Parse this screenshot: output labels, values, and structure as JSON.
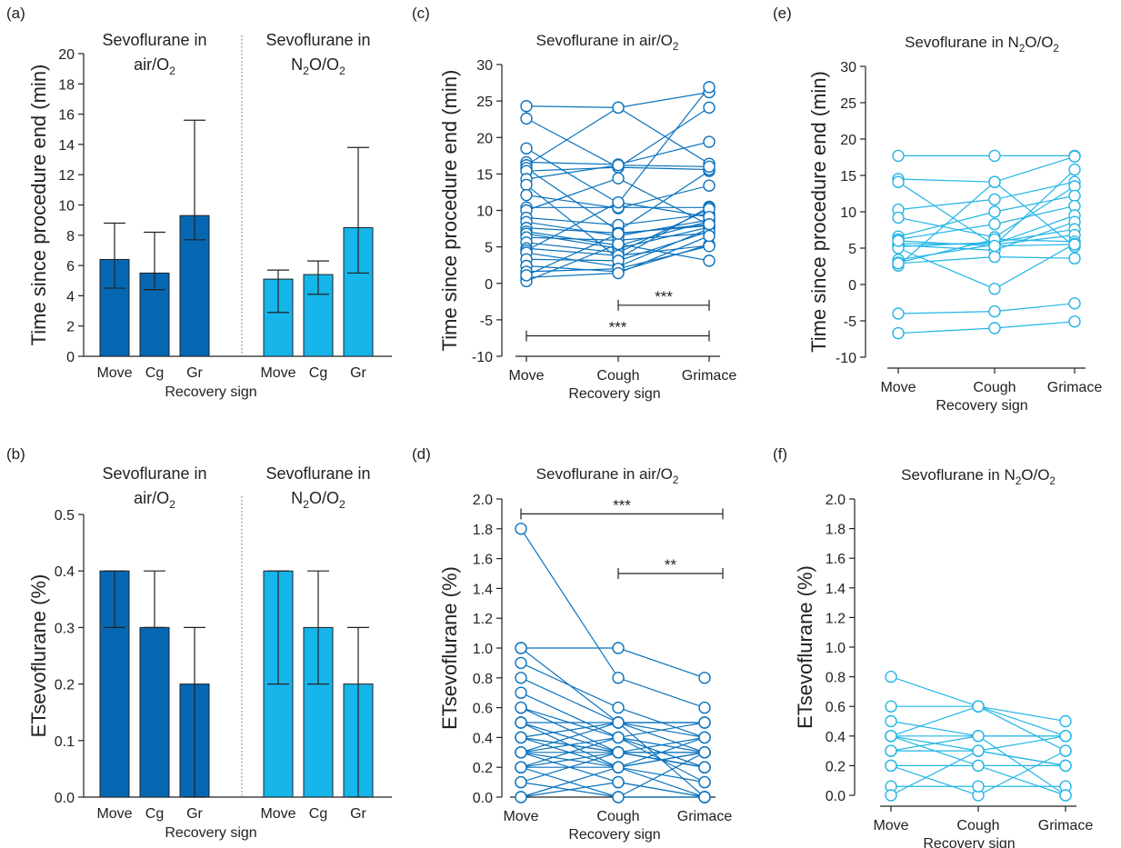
{
  "colors": {
    "dark": "#0567b2",
    "light": "#16b5ea",
    "lines_c": "#0a72bd",
    "lines_e": "#22b6e6",
    "axis": "#222222"
  },
  "common": {
    "recovery_sign": "Recovery sign",
    "time_label": "Time since procedure end (min)",
    "et_label": "ETsevoflurane (%)",
    "group_air": [
      "Sevoflurane in",
      "air/O"
    ],
    "group_n2o": [
      "Sevoflurane in",
      "N",
      "O/O"
    ],
    "sub2": "2",
    "bar_ticks": [
      "Move",
      "Cg",
      "Gr"
    ],
    "line_ticks": [
      "Move",
      "Cough",
      "Grimace"
    ],
    "title_air": "Sevoflurane in air/O",
    "title_n2o_a": "Sevoflurane in N",
    "title_n2o_b": "O/O"
  },
  "chart_data": [
    {
      "panel": "(a)",
      "type": "bar",
      "ylim": [
        0,
        20
      ],
      "yticks": [
        0,
        2,
        4,
        6,
        8,
        10,
        12,
        14,
        16,
        18,
        20
      ],
      "categories": [
        "Move",
        "Cg",
        "Gr"
      ],
      "series": [
        {
          "group": "air",
          "values": [
            6.4,
            5.5,
            9.3
          ],
          "err_low": [
            4.5,
            4.4,
            7.7
          ],
          "err_high": [
            8.8,
            8.2,
            15.6
          ]
        },
        {
          "group": "n2o",
          "values": [
            5.1,
            5.4,
            8.5
          ],
          "err_low": [
            2.9,
            4.1,
            5.5
          ],
          "err_high": [
            5.7,
            6.3,
            13.8
          ]
        }
      ]
    },
    {
      "panel": "(b)",
      "type": "bar",
      "ylim": [
        0,
        0.5
      ],
      "yticks": [
        0,
        0.1,
        0.2,
        0.3,
        0.4,
        0.5
      ],
      "categories": [
        "Move",
        "Cg",
        "Gr"
      ],
      "series": [
        {
          "group": "air",
          "values": [
            0.4,
            0.3,
            0.2
          ],
          "err_low": [
            0.3,
            0.3,
            0.0
          ],
          "err_high": [
            0.4,
            0.4,
            0.3
          ]
        },
        {
          "group": "n2o",
          "values": [
            0.4,
            0.3,
            0.2
          ],
          "err_low": [
            0.2,
            0.2,
            0.0
          ],
          "err_high": [
            0.4,
            0.4,
            0.3
          ]
        }
      ]
    },
    {
      "panel": "(c)",
      "type": "line",
      "ylim": [
        -10,
        30
      ],
      "yticks": [
        -10,
        -5,
        0,
        5,
        10,
        15,
        20,
        25,
        30
      ],
      "categories": [
        "Move",
        "Cough",
        "Grimace"
      ],
      "significance": [
        {
          "from": 1,
          "to": 2,
          "y": -3,
          "label": "***"
        },
        {
          "from": 0,
          "to": 2,
          "y": -7.2,
          "label": "***"
        }
      ],
      "subjects": [
        [
          24.3,
          24.1,
          26.2
        ],
        [
          22.6,
          15.9,
          24.1
        ],
        [
          18.5,
          11.0,
          26.9
        ],
        [
          16.6,
          16.3,
          19.4
        ],
        [
          16.2,
          24.1,
          16.4
        ],
        [
          15.8,
          7.2,
          15.4
        ],
        [
          15.4,
          15.9,
          15.6
        ],
        [
          14.3,
          16.2,
          16.0
        ],
        [
          13.5,
          3.4,
          10.5
        ],
        [
          12.1,
          10.3,
          13.4
        ],
        [
          10.4,
          10.4,
          10.4
        ],
        [
          10.0,
          14.4,
          8.0
        ],
        [
          9.0,
          8.0,
          9.5
        ],
        [
          8.4,
          6.5,
          8.7
        ],
        [
          7.6,
          6.9,
          7.9
        ],
        [
          7.1,
          5.2,
          8.5
        ],
        [
          6.8,
          4.8,
          7.7
        ],
        [
          6.3,
          5.9,
          6.9
        ],
        [
          5.6,
          4.2,
          10.2
        ],
        [
          4.8,
          3.8,
          5.2
        ],
        [
          4.5,
          11.1,
          9.1
        ],
        [
          4.2,
          2.3,
          7.5
        ],
        [
          3.3,
          3.1,
          7.1
        ],
        [
          2.4,
          1.6,
          5.3
        ],
        [
          1.6,
          2.0,
          5.1
        ],
        [
          0.8,
          1.4,
          6.5
        ],
        [
          0.3,
          5.4,
          3.1
        ],
        [
          1.1,
          6.8,
          8.1
        ]
      ]
    },
    {
      "panel": "(d)",
      "type": "line",
      "ylim": [
        0,
        2.0
      ],
      "yticks": [
        0,
        0.2,
        0.4,
        0.6,
        0.8,
        1.0,
        1.2,
        1.4,
        1.6,
        1.8,
        2.0
      ],
      "categories": [
        "Move",
        "Cough",
        "Grimace"
      ],
      "significance": [
        {
          "from": 0,
          "to": 2,
          "y": 1.9,
          "label": "***"
        },
        {
          "from": 1,
          "to": 2,
          "y": 1.5,
          "label": "**"
        }
      ],
      "subjects": [
        [
          1.8,
          0.8,
          0.6
        ],
        [
          1.0,
          1.0,
          0.8
        ],
        [
          1.0,
          0.5,
          0.5
        ],
        [
          0.9,
          0.6,
          0.4
        ],
        [
          0.8,
          0.5,
          0.3
        ],
        [
          0.7,
          0.4,
          0.3
        ],
        [
          0.6,
          0.3,
          0.2
        ],
        [
          0.6,
          0.4,
          0.1
        ],
        [
          0.5,
          0.5,
          0.5
        ],
        [
          0.5,
          0.3,
          0.3
        ],
        [
          0.4,
          0.3,
          0.2
        ],
        [
          0.4,
          0.5,
          0.4
        ],
        [
          0.4,
          0.2,
          0.0
        ],
        [
          0.3,
          0.3,
          0.3
        ],
        [
          0.3,
          0.4,
          0.2
        ],
        [
          0.3,
          0.2,
          0.3
        ],
        [
          0.3,
          0.1,
          0.0
        ],
        [
          0.2,
          0.3,
          0.4
        ],
        [
          0.2,
          0.2,
          0.1
        ],
        [
          0.2,
          0.0,
          0.3
        ],
        [
          0.2,
          0.4,
          0.5
        ],
        [
          0.1,
          0.3,
          0.2
        ],
        [
          0.0,
          0.1,
          0.0
        ],
        [
          0.0,
          0.2,
          0.4
        ],
        [
          0.4,
          0.3,
          0.2
        ],
        [
          0.3,
          0.5,
          0.0
        ],
        [
          0.5,
          0.2,
          0.3
        ],
        [
          0.1,
          0.0,
          0.0
        ]
      ]
    },
    {
      "panel": "(e)",
      "type": "line",
      "ylim": [
        -10,
        30
      ],
      "yticks": [
        -10,
        -5,
        0,
        5,
        10,
        15,
        20,
        25,
        30
      ],
      "categories": [
        "Move",
        "Cough",
        "Grimace"
      ],
      "subjects": [
        [
          17.7,
          17.7,
          17.7
        ],
        [
          14.5,
          14.1,
          17.6
        ],
        [
          14.1,
          5.4,
          15.8
        ],
        [
          10.3,
          11.7,
          14.1
        ],
        [
          9.2,
          6.5,
          13.5
        ],
        [
          6.6,
          10.0,
          12.2
        ],
        [
          6.2,
          8.3,
          10.8
        ],
        [
          5.6,
          5.6,
          9.5
        ],
        [
          5.4,
          4.7,
          8.6
        ],
        [
          5.2,
          5.8,
          7.6
        ],
        [
          3.4,
          5.5,
          6.8
        ],
        [
          3.0,
          6.2,
          5.9
        ],
        [
          2.6,
          14.1,
          5.2
        ],
        [
          2.9,
          3.8,
          3.6
        ],
        [
          5.0,
          -0.6,
          5.6
        ],
        [
          -4.0,
          -3.7,
          -2.6
        ],
        [
          -6.7,
          -6.0,
          -5.1
        ],
        [
          6.0,
          5.3,
          5.5
        ]
      ]
    },
    {
      "panel": "(f)",
      "type": "line",
      "ylim": [
        0,
        2.0
      ],
      "yticks": [
        0,
        0.2,
        0.4,
        0.6,
        0.8,
        1.0,
        1.2,
        1.4,
        1.6,
        1.8,
        2.0
      ],
      "categories": [
        "Move",
        "Cough",
        "Grimace"
      ],
      "subjects": [
        [
          0.8,
          0.6,
          0.4
        ],
        [
          0.6,
          0.6,
          0.5
        ],
        [
          0.5,
          0.4,
          0.4
        ],
        [
          0.4,
          0.4,
          0.4
        ],
        [
          0.4,
          0.3,
          0.2
        ],
        [
          0.4,
          0.6,
          0.3
        ],
        [
          0.3,
          0.3,
          0.2
        ],
        [
          0.3,
          0.4,
          0.0
        ],
        [
          0.2,
          0.2,
          0.2
        ],
        [
          0.2,
          0.0,
          0.3
        ],
        [
          0.06,
          0.06,
          0.06
        ],
        [
          0.0,
          0.3,
          0.4
        ],
        [
          0.4,
          0.2,
          0.0
        ]
      ]
    }
  ]
}
